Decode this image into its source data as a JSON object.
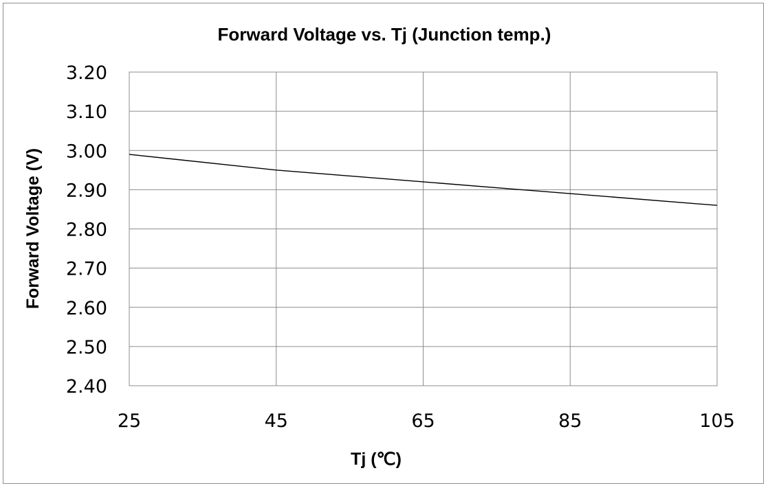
{
  "chart_data": {
    "type": "line",
    "title": "Forward Voltage vs. Tj (Junction temp.)",
    "xlabel": "Tj (℃)",
    "ylabel": "Forward Voltage (V)",
    "xlim": [
      25,
      105
    ],
    "ylim": [
      2.4,
      3.2
    ],
    "x_ticks": [
      "25",
      "45",
      "65",
      "85",
      "105"
    ],
    "y_ticks": [
      "2.40",
      "2.50",
      "2.60",
      "2.70",
      "2.80",
      "2.90",
      "3.00",
      "3.10",
      "3.20"
    ],
    "grid": true,
    "legend": "none",
    "series": [
      {
        "color": "#000000",
        "x": [
          25,
          45,
          65,
          85,
          105
        ],
        "y": [
          2.99,
          2.95,
          2.92,
          2.89,
          2.86
        ]
      }
    ]
  }
}
